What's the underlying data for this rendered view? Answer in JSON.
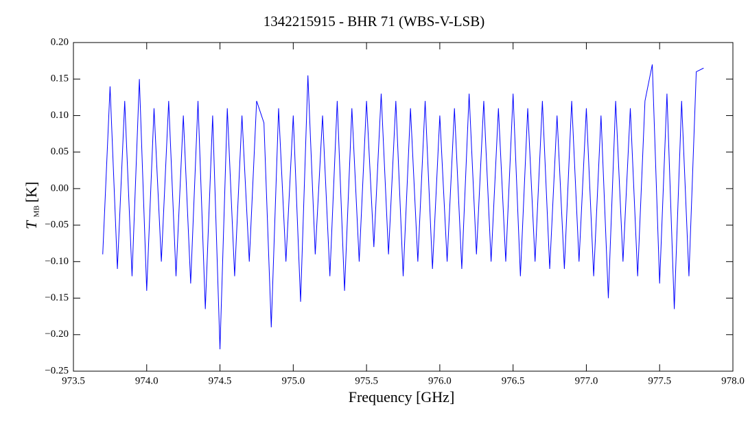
{
  "chart_data": {
    "type": "line",
    "title": "1342215915 - BHR 71 (WBS-V-LSB)",
    "xlabel": "Frequency [GHz]",
    "ylabel": {
      "symbol": "T",
      "subscript": "MB",
      "unit": "[K]"
    },
    "xlim": [
      973.5,
      978.0
    ],
    "ylim": [
      -0.25,
      0.2
    ],
    "xticks": [
      973.5,
      {
        "value": 974,
        "label": "974.0"
      },
      974.5,
      {
        "value": 975,
        "label": "975.0"
      },
      975.5,
      {
        "value": 976,
        "label": "976.0"
      },
      976.5,
      {
        "value": 977,
        "label": "977.0"
      },
      977.5,
      {
        "value": 978,
        "label": "978.0"
      }
    ],
    "yticks": [
      {
        "value": -0.25,
        "label": "−0.25"
      },
      {
        "value": -0.2,
        "label": "−0.20"
      },
      {
        "value": -0.15,
        "label": "−0.15"
      },
      {
        "value": -0.1,
        "label": "−0.10"
      },
      {
        "value": -0.05,
        "label": "−0.05"
      },
      {
        "value": 0,
        "label": "0.00"
      },
      {
        "value": 0.05,
        "label": "0.05"
      },
      {
        "value": 0.1,
        "label": "0.10"
      },
      {
        "value": 0.15,
        "label": "0.15"
      },
      {
        "value": 0.2,
        "label": "0.20"
      }
    ],
    "x": [
      973.7,
      973.75,
      973.8,
      973.85,
      973.9,
      973.95,
      974.0,
      974.05,
      974.1,
      974.15,
      974.2,
      974.25,
      974.3,
      974.35,
      974.4,
      974.45,
      974.5,
      974.55,
      974.6,
      974.65,
      974.7,
      974.75,
      974.8,
      974.85,
      974.9,
      974.95,
      975.0,
      975.05,
      975.1,
      975.15,
      975.2,
      975.25,
      975.3,
      975.35,
      975.4,
      975.45,
      975.5,
      975.55,
      975.6,
      975.65,
      975.7,
      975.75,
      975.8,
      975.85,
      975.9,
      975.95,
      976.0,
      976.05,
      976.1,
      976.15,
      976.2,
      976.25,
      976.3,
      976.35,
      976.4,
      976.45,
      976.5,
      976.55,
      976.6,
      976.65,
      976.7,
      976.75,
      976.8,
      976.85,
      976.9,
      976.95,
      977.0,
      977.05,
      977.1,
      977.15,
      977.2,
      977.25,
      977.3,
      977.35,
      977.4,
      977.45,
      977.5,
      977.55,
      977.6,
      977.65,
      977.7,
      977.75,
      977.8
    ],
    "series": [
      {
        "color": "#0000ff",
        "values": [
          -0.09,
          0.14,
          -0.11,
          0.12,
          -0.12,
          0.15,
          -0.14,
          0.11,
          -0.1,
          0.12,
          -0.12,
          0.1,
          -0.13,
          0.12,
          -0.165,
          0.1,
          -0.22,
          0.11,
          -0.12,
          0.1,
          -0.1,
          0.12,
          0.09,
          -0.19,
          0.11,
          -0.1,
          0.1,
          -0.155,
          0.155,
          -0.09,
          0.1,
          -0.12,
          0.12,
          -0.14,
          0.11,
          -0.1,
          0.12,
          -0.08,
          0.13,
          -0.09,
          0.12,
          -0.12,
          0.11,
          -0.1,
          0.12,
          -0.11,
          0.1,
          -0.1,
          0.11,
          -0.11,
          0.13,
          -0.09,
          0.12,
          -0.1,
          0.11,
          -0.1,
          0.13,
          -0.12,
          0.11,
          -0.1,
          0.12,
          -0.11,
          0.1,
          -0.11,
          0.12,
          -0.1,
          0.11,
          -0.12,
          0.1,
          -0.15,
          0.12,
          -0.1,
          0.11,
          -0.12,
          0.12,
          0.17,
          -0.13,
          0.13,
          -0.165,
          0.12,
          -0.12,
          0.16,
          0.165
        ]
      }
    ]
  }
}
